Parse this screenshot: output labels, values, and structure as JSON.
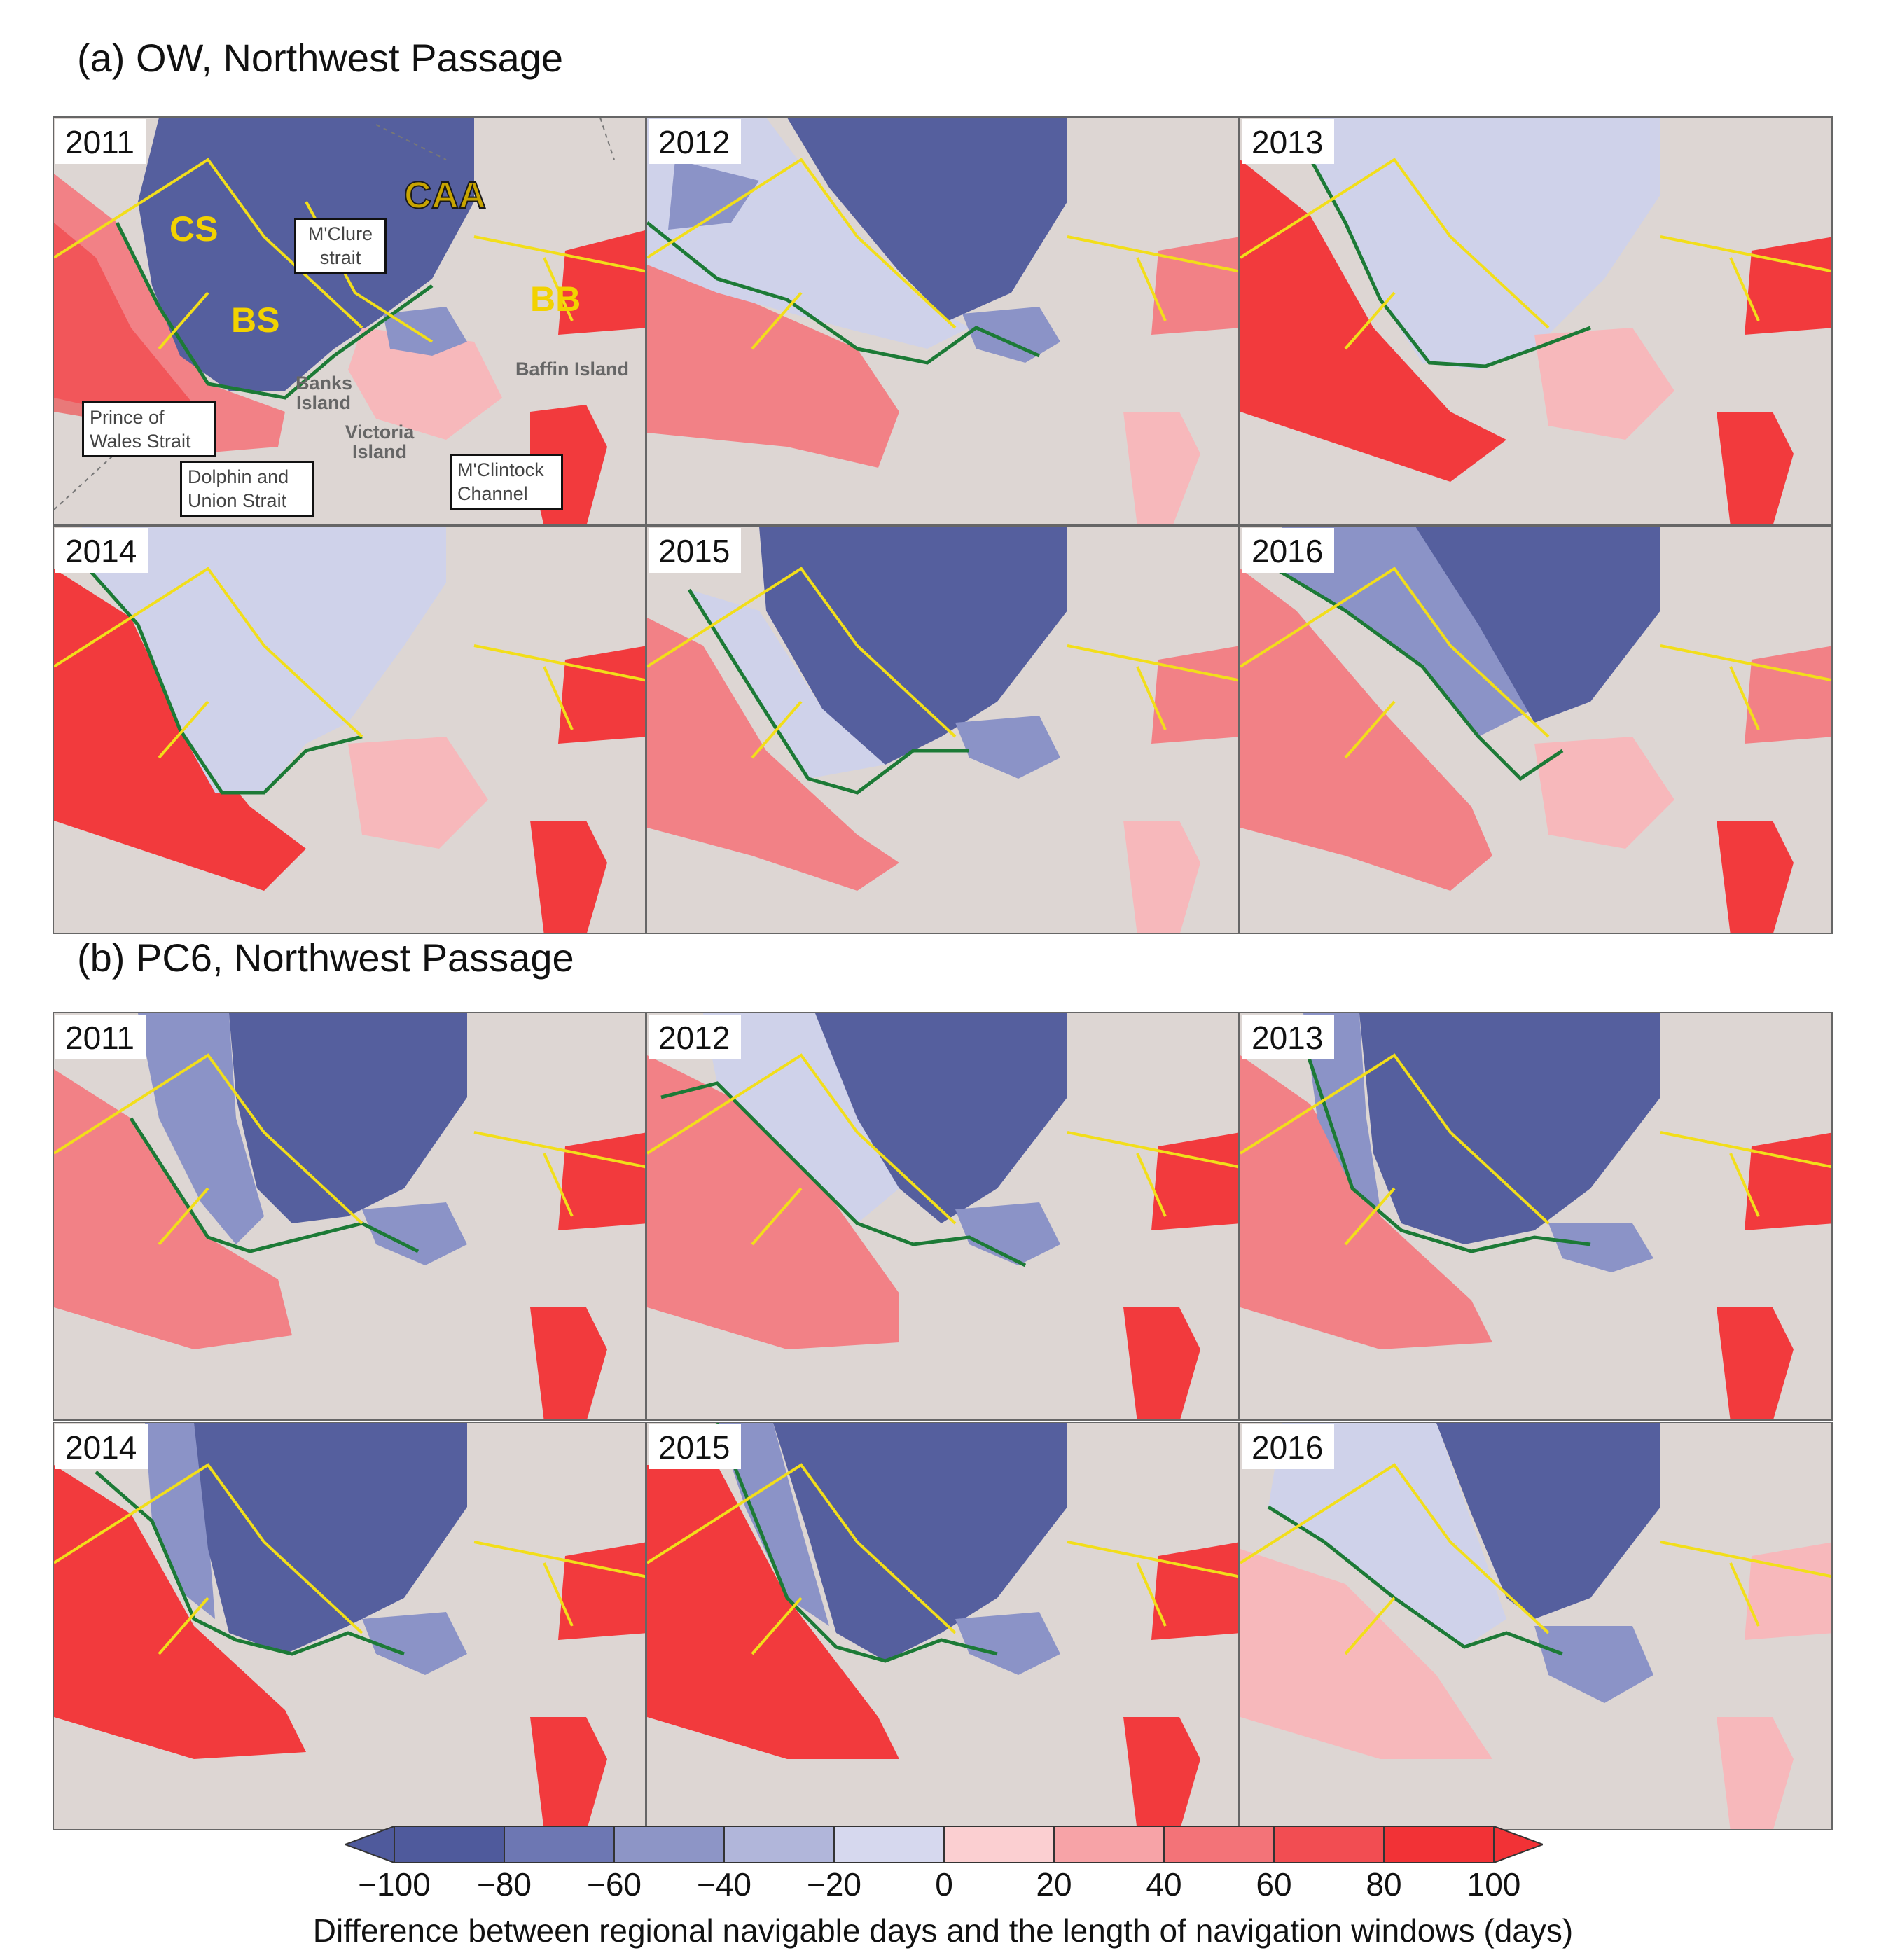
{
  "sections": {
    "a": {
      "title": "(a) OW, Northwest Passage"
    },
    "b": {
      "title": "(b) PC6, Northwest Passage"
    }
  },
  "years": [
    "2011",
    "2012",
    "2013",
    "2014",
    "2015",
    "2016"
  ],
  "regions": {
    "cs": "CS",
    "bs": "BS",
    "caa": "CAA",
    "bb": "BB"
  },
  "place_names": {
    "banks_island": "Banks Island",
    "victoria_island": "Victoria Island",
    "baffin_island": "Baffin Island"
  },
  "callouts": {
    "mclure": "M'Clure strait",
    "prince_of_wales": "Prince of Wales Strait",
    "dolphin_union": "Dolphin and Union Strait",
    "mclintock": "M'Clintock Channel"
  },
  "colors": {
    "land": "#ddd6d3",
    "deep_blue": "#555f9e",
    "mid_blue": "#8b93c7",
    "light_blue": "#cfd2ea",
    "light_red": "#f7b8bb",
    "mid_red": "#f28186",
    "deep_red": "#f23a3d",
    "contour": "#1c7a36",
    "route": "#f2de1a"
  },
  "colorbar": {
    "ticks": [
      "−100",
      "−80",
      "−60",
      "−40",
      "−20",
      "0",
      "20",
      "40",
      "60",
      "80",
      "100"
    ],
    "colors": [
      "#4f5a9c",
      "#6d77b3",
      "#8d95c6",
      "#b1b6da",
      "#d6d8ee",
      "#fbcfd1",
      "#f7a3a7",
      "#f37378",
      "#f24d52",
      "#f23236"
    ],
    "caption": "Difference between regional navigable days and the length of navigation windows (days)"
  }
}
